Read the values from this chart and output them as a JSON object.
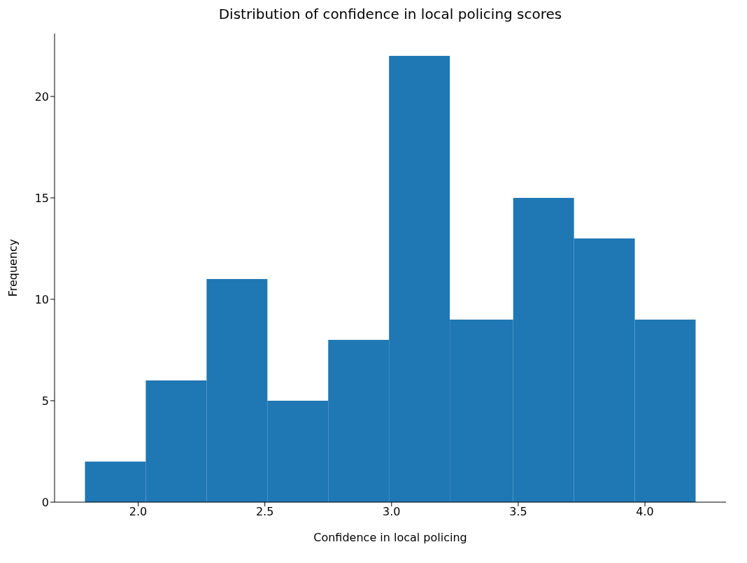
{
  "chart_data": {
    "type": "histogram",
    "title": "Distribution of confidence in local policing scores",
    "xlabel": "Confidence in local policing",
    "ylabel": "Frequency",
    "bins": [
      1.79,
      2.03,
      2.27,
      2.51,
      2.75,
      2.99,
      3.23,
      3.48,
      3.72,
      3.96,
      4.2
    ],
    "values": [
      2,
      6,
      11,
      5,
      8,
      22,
      9,
      15,
      13,
      9
    ],
    "color": "#1f77b4",
    "xlim": [
      1.67,
      4.32
    ],
    "xticks": [
      {
        "value": 2,
        "label": "2.0"
      },
      2.5,
      {
        "value": 3,
        "label": "3.0"
      },
      3.5,
      {
        "value": 4,
        "label": "4.0"
      }
    ],
    "ylim": [
      0,
      23.1
    ],
    "yticks": [
      0,
      5,
      10,
      15,
      20
    ],
    "grid": false,
    "legend": false
  }
}
